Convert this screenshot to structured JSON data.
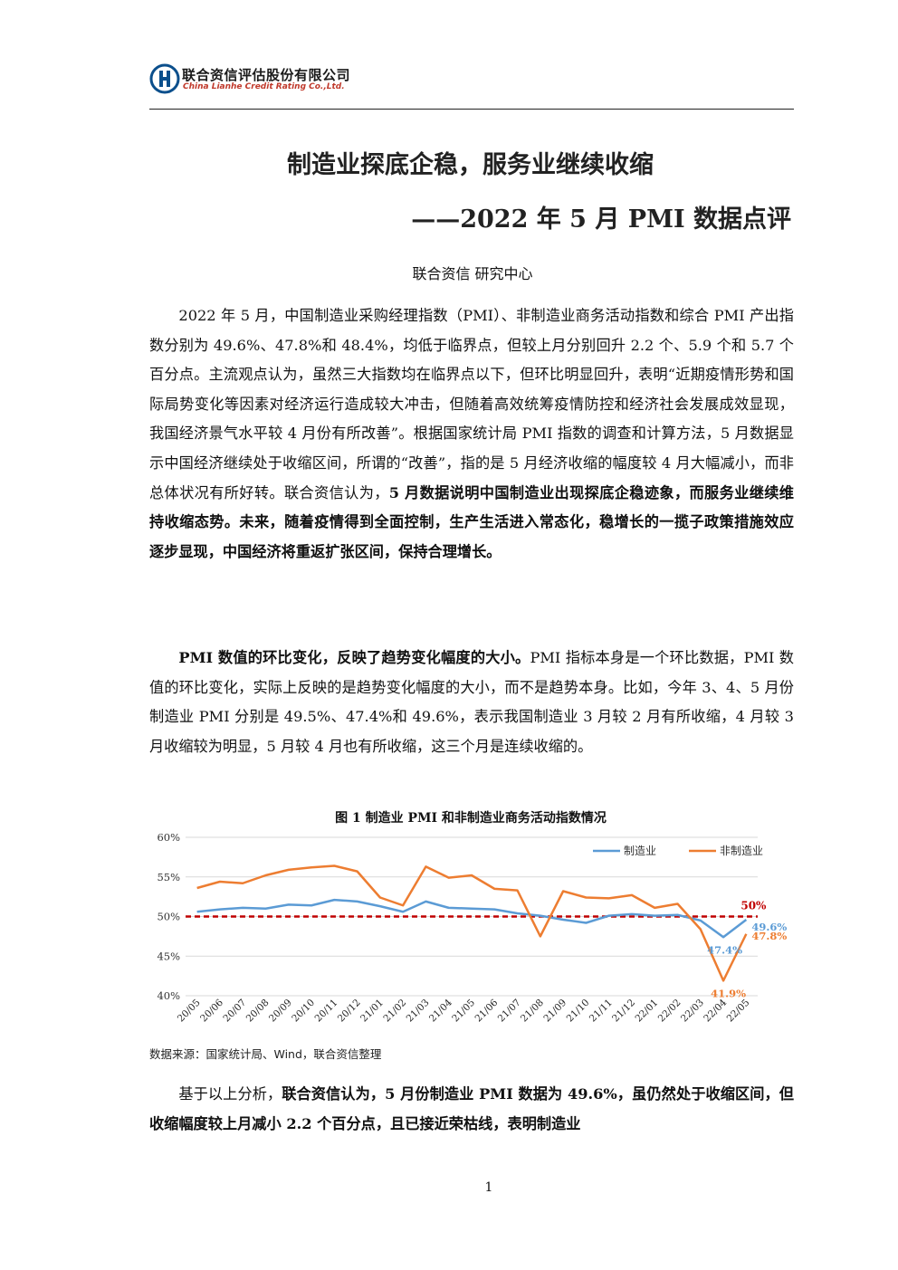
{
  "header": {
    "company_cn": "联合资信评估股份有限公司",
    "company_en": "China Lianhe Credit Rating Co.,Ltd.",
    "brand_color": "#0b4f8c",
    "accent_color": "#c0392b"
  },
  "title": "制造业探底企稳，服务业继续收缩",
  "subtitle": "——2022 年 5 月 PMI 数据点评",
  "author": "联合资信  研究中心",
  "paragraph1": {
    "normal": "2022 年 5 月，中国制造业采购经理指数（PMI）、非制造业商务活动指数和综合 PMI 产出指数分别为 49.6%、47.8%和 48.4%，均低于临界点，但较上月分别回升 2.2 个、5.9 个和 5.7 个百分点。主流观点认为，虽然三大指数均在临界点以下，但环比明显回升，表明“近期疫情形势和国际局势变化等因素对经济运行造成较大冲击，但随着高效统筹疫情防控和经济社会发展成效显现，我国经济景气水平较 4 月份有所改善”。根据国家统计局 PMI 指数的调查和计算方法，5 月数据显示中国经济继续处于收缩区间，所谓的“改善”，指的是 5 月经济收缩的幅度较 4 月大幅减小，而非总体状况有所好转。联合资信认为，",
    "bold": "5 月数据说明中国制造业出现探底企稳迹象，而服务业继续维持收缩态势。未来，随着疫情得到全面控制，生产生活进入常态化，稳增长的一揽子政策措施效应逐步显现，中国经济将重返扩张区间，保持合理增长。"
  },
  "paragraph2": {
    "bold": "PMI 数值的环比变化，反映了趋势变化幅度的大小。",
    "normal": "PMI 指标本身是一个环比数据，PMI 数值的环比变化，实际上反映的是趋势变化幅度的大小，而不是趋势本身。比如，今年 3、4、5 月份制造业 PMI 分别是 49.5%、47.4%和 49.6%，表示我国制造业 3 月较 2 月有所收缩，4 月较 3 月收缩较为明显，5 月较 4 月也有所收缩，这三个月是连续收缩的。"
  },
  "figure_caption": "图 1    制造业 PMI 和非制造业商务活动指数情况",
  "source_note": "数据来源：国家统计局、Wind，联合资信整理",
  "paragraph3": {
    "normal": "基于以上分析，",
    "bold": "联合资信认为，5 月份制造业 PMI 数据为 49.6%，虽仍然处于收缩区间，但收缩幅度较上月减小 2.2 个百分点，且已接近荣枯线，表明制造业"
  },
  "page_number": "1",
  "chart_data": {
    "type": "line",
    "title": "",
    "xlabel": "",
    "ylabel": "",
    "ylim": [
      40,
      60
    ],
    "yticks": [
      "40%",
      "45%",
      "50%",
      "55%",
      "60%"
    ],
    "categories": [
      "20/05",
      "20/06",
      "20/07",
      "20/08",
      "20/09",
      "20/10",
      "20/11",
      "20/12",
      "21/01",
      "21/02",
      "21/03",
      "21/04",
      "21/05",
      "21/06",
      "21/07",
      "21/08",
      "21/09",
      "21/10",
      "21/11",
      "21/12",
      "22/01",
      "22/02",
      "22/03",
      "22/04",
      "22/05"
    ],
    "series": [
      {
        "name": "制造业",
        "color": "#5b9bd5",
        "values": [
          50.6,
          50.9,
          51.1,
          51.0,
          51.5,
          51.4,
          52.1,
          51.9,
          51.3,
          50.6,
          51.9,
          51.1,
          51.0,
          50.9,
          50.4,
          50.1,
          49.6,
          49.2,
          50.1,
          50.3,
          50.1,
          50.2,
          49.5,
          47.4,
          49.6
        ]
      },
      {
        "name": "非制造业",
        "color": "#ed7d31",
        "values": [
          53.6,
          54.4,
          54.2,
          55.2,
          55.9,
          56.2,
          56.4,
          55.7,
          52.4,
          51.4,
          56.3,
          54.9,
          55.2,
          53.5,
          53.3,
          47.5,
          53.2,
          52.4,
          52.3,
          52.7,
          51.1,
          51.6,
          48.4,
          41.9,
          47.8
        ]
      }
    ],
    "reference_line": {
      "value": 50,
      "label": "50%",
      "color": "#c00000",
      "style": "dashed"
    },
    "annotations": [
      {
        "series": "制造业",
        "category": "22/04",
        "text": "47.4%"
      },
      {
        "series": "制造业",
        "category": "22/05",
        "text": "49.6%"
      },
      {
        "series": "非制造业",
        "category": "22/04",
        "text": "41.9%"
      },
      {
        "series": "非制造业",
        "category": "22/05",
        "text": "47.8%"
      }
    ],
    "legend_position": "top-right",
    "grid": "horizontal"
  }
}
